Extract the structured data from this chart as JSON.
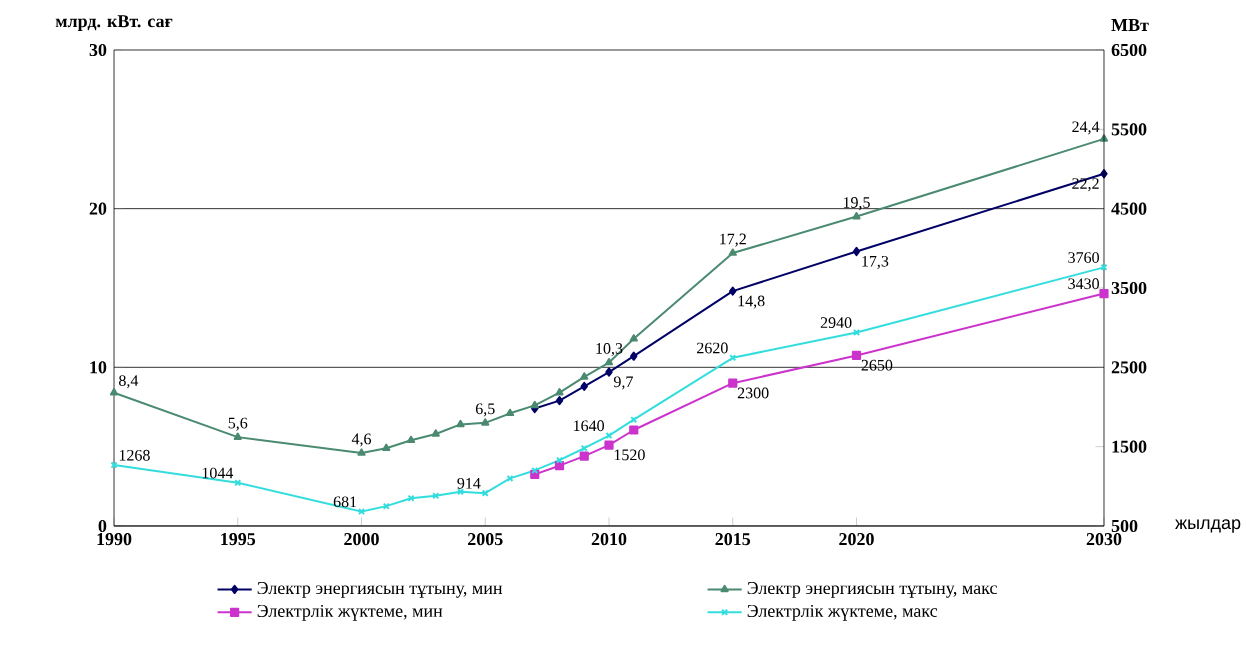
{
  "chart_data": {
    "type": "line",
    "x": [
      1990,
      1995,
      2000,
      2001,
      2002,
      2003,
      2004,
      2005,
      2006,
      2007,
      2008,
      2009,
      2010,
      2011,
      2015,
      2020,
      2030
    ],
    "xlim": [
      1990,
      2030
    ],
    "xticks": [
      1990,
      1995,
      2000,
      2005,
      2010,
      2015,
      2020,
      2030
    ],
    "ylim": [
      0,
      30
    ],
    "yticks": [
      0,
      10,
      20,
      30
    ],
    "y2lim": [
      500,
      6500
    ],
    "y2ticks": [
      500,
      1500,
      2500,
      3500,
      4500,
      5500,
      6500
    ],
    "xlabel": "жылдар",
    "ylabel": "млрд. кВт. сағ",
    "y2label": "МВт",
    "grid": "y",
    "legend": "bottom",
    "series": [
      {
        "name": "Электр энергиясын тұтыну, мин",
        "color": "#000066",
        "marker": "diamond",
        "values": [
          null,
          null,
          null,
          null,
          null,
          null,
          null,
          null,
          null,
          7.4,
          7.9,
          8.8,
          9.7,
          10.7,
          14.8,
          17.3,
          22.2
        ],
        "value_labels": [
          null,
          null,
          null,
          null,
          null,
          null,
          null,
          null,
          null,
          null,
          null,
          null,
          "9,7",
          null,
          "14,8",
          "17,3",
          "22,2"
        ]
      },
      {
        "name": "Электр энергиясын тұтыну, макс",
        "color": "#4a8a70",
        "marker": "triangle",
        "values": [
          8.4,
          5.6,
          4.6,
          4.9,
          5.4,
          5.8,
          6.4,
          6.5,
          7.1,
          7.6,
          8.4,
          9.4,
          10.3,
          11.8,
          17.2,
          19.5,
          24.4
        ],
        "value_labels": [
          "8,4",
          "5,6",
          "4,6",
          null,
          null,
          null,
          null,
          "6,5",
          null,
          null,
          null,
          null,
          "10,3",
          null,
          "17,2",
          "19,5",
          "24,4"
        ]
      },
      {
        "name": "Электрлік жүктеме, мин",
        "color": "#cc33cc",
        "marker": "square",
        "axis": "y2",
        "values": [
          null,
          null,
          null,
          null,
          null,
          null,
          null,
          null,
          null,
          1150,
          1260,
          1380,
          1520,
          1710,
          2300,
          2650,
          3430
        ],
        "value_labels": [
          null,
          null,
          null,
          null,
          null,
          null,
          null,
          null,
          null,
          null,
          null,
          null,
          "1520",
          null,
          "2300",
          "2650",
          "3430"
        ]
      },
      {
        "name": "Электрлік жүктеме, макс",
        "color": "#33dddd",
        "marker": "cross",
        "axis": "y2",
        "values": [
          1268,
          1044,
          681,
          750,
          850,
          880,
          930,
          914,
          1100,
          1200,
          1330,
          1480,
          1640,
          1840,
          2620,
          2940,
          3760
        ],
        "value_labels": [
          "1268",
          "1044",
          "681",
          null,
          null,
          null,
          null,
          "914",
          null,
          null,
          null,
          null,
          "1640",
          null,
          "2620",
          "2940",
          "3760"
        ]
      }
    ]
  }
}
